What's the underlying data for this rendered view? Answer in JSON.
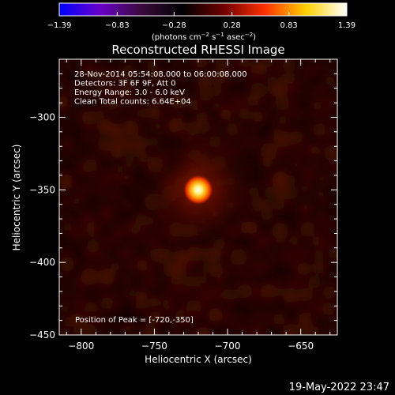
{
  "chart_data": {
    "type": "heatmap",
    "title": "Reconstructed RHESSI Image",
    "xlabel": "Heliocentric X (arcsec)",
    "ylabel": "Heliocentric Y (arcsec)",
    "xlim": [
      -815,
      -625
    ],
    "ylim": [
      -450,
      -260
    ],
    "x_ticks": [
      -800,
      -750,
      -700,
      -650
    ],
    "y_ticks": [
      -450,
      -400,
      -350,
      -300
    ],
    "x_tick_labels": [
      "−800",
      "−750",
      "−700",
      "−650"
    ],
    "y_tick_labels": [
      "−450",
      "−400",
      "−350",
      "−300"
    ],
    "colorbar": {
      "min": -1.39,
      "max": 1.39,
      "ticks": [
        -1.39,
        -0.83,
        -0.28,
        0.28,
        0.83,
        1.39
      ],
      "tick_labels": [
        "−1.39",
        "−0.83",
        "−0.28",
        "0.28",
        "0.83",
        "1.39"
      ],
      "colormap": [
        "#0000ff",
        "#6a00c8",
        "#3a0a3c",
        "#000000",
        "#6e0000",
        "#ff3000",
        "#ffd000",
        "#ffffff"
      ]
    },
    "info_lines": [
      "28-Nov-2014 05:54:08.000 to 06:00:08.000",
      "Detectors: 3F 6F 9F, Att 0",
      "Energy Range: 3.0 - 6.0 keV",
      "Clean    Total counts: 6.64E+04"
    ],
    "peak_label": "Position of Peak = [-720,-350]",
    "peak": {
      "x": -720,
      "y": -350
    },
    "grid": false
  },
  "colorbar_units": "(photons cm",
  "colorbar_units_exp1": "−2",
  "colorbar_units_mid": " s",
  "colorbar_units_exp2": "−1",
  "colorbar_units_end": " asec",
  "colorbar_units_exp3": "−2",
  "colorbar_units_close": ")",
  "timestamp": "19-May-2022 23:47"
}
